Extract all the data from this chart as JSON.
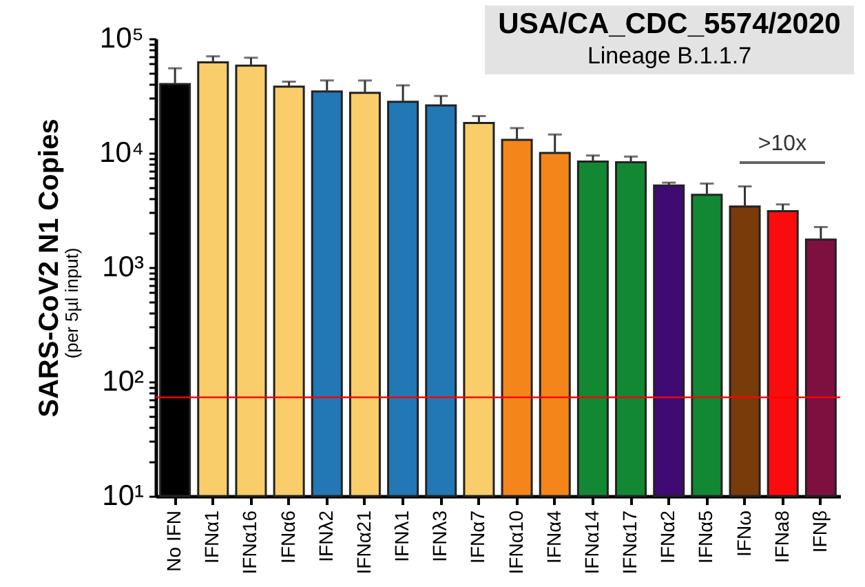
{
  "chart_data": {
    "type": "bar",
    "title": "USA/CA_CDC_5574/2020",
    "subtitle": "Lineage B.1.1.7",
    "ylabel": "SARS-CoV2 N1 Copies",
    "annotations": [
      "(per 5µl input)",
      ">10x"
    ],
    "categories": [
      "No IFN",
      "IFNα1",
      "IFNα16",
      "IFNα6",
      "IFNλ2",
      "IFNα21",
      "IFNλ1",
      "IFNλ3",
      "IFNα7",
      "IFNα10",
      "IFNα4",
      "IFNα14",
      "IFNα17",
      "IFNα2",
      "IFNα5",
      "IFNω",
      "IFNa8",
      "IFNβ"
    ],
    "values": [
      40000,
      62000,
      58000,
      38000,
      34500,
      33500,
      28000,
      26000,
      18300,
      13000,
      10000,
      8400,
      8300,
      5200,
      4300,
      3400,
      3100,
      1750
    ],
    "errors": [
      [
        40000,
        55000
      ],
      [
        62000,
        70000
      ],
      [
        58000,
        68000
      ],
      [
        38000,
        42000
      ],
      [
        34500,
        43000
      ],
      [
        33500,
        43000
      ],
      [
        28000,
        39000
      ],
      [
        26000,
        31500
      ],
      [
        18300,
        21000
      ],
      [
        13000,
        16500
      ],
      [
        10000,
        14500
      ],
      [
        8400,
        9500
      ],
      [
        8300,
        9300
      ],
      [
        5200,
        5500
      ],
      [
        4300,
        5400
      ],
      [
        3400,
        5100
      ],
      [
        3100,
        3550
      ],
      [
        1750,
        2250
      ]
    ],
    "colors": [
      "#000000",
      "#f8cd6a",
      "#f8cd6a",
      "#f8cd6a",
      "#2178b5",
      "#f8cd6a",
      "#2178b5",
      "#2178b5",
      "#f8cd6a",
      "#f4851a",
      "#f4851a",
      "#138833",
      "#138833",
      "#3f0a74",
      "#138833",
      "#7a3b0a",
      "#fb0c0c",
      "#7e1040"
    ],
    "log": "y",
    "ylim": [
      10,
      100000
    ],
    "yticks": [
      {
        "value": 10,
        "label": "10¹"
      },
      {
        "value": 20,
        "label": null
      },
      {
        "value": 30,
        "label": null
      },
      {
        "value": 40,
        "label": null
      },
      {
        "value": 50,
        "label": null
      },
      {
        "value": 60,
        "label": null
      },
      {
        "value": 70,
        "label": null
      },
      {
        "value": 80,
        "label": null
      },
      {
        "value": 90,
        "label": null
      },
      {
        "value": 100,
        "label": "10²"
      },
      {
        "value": 200,
        "label": null
      },
      {
        "value": 300,
        "label": null
      },
      {
        "value": 400,
        "label": null
      },
      {
        "value": 500,
        "label": null
      },
      {
        "value": 600,
        "label": null
      },
      {
        "value": 700,
        "label": null
      },
      {
        "value": 800,
        "label": null
      },
      {
        "value": 900,
        "label": null
      },
      {
        "value": 1000,
        "label": "10³"
      },
      {
        "value": 2000,
        "label": null
      },
      {
        "value": 3000,
        "label": null
      },
      {
        "value": 4000,
        "label": null
      },
      {
        "value": 5000,
        "label": null
      },
      {
        "value": 6000,
        "label": null
      },
      {
        "value": 7000,
        "label": null
      },
      {
        "value": 8000,
        "label": null
      },
      {
        "value": 9000,
        "label": null
      },
      {
        "value": 10000,
        "label": "10⁴"
      },
      {
        "value": 20000,
        "label": null
      },
      {
        "value": 30000,
        "label": null
      },
      {
        "value": 40000,
        "label": null
      },
      {
        "value": 50000,
        "label": null
      },
      {
        "value": 60000,
        "label": null
      },
      {
        "value": 70000,
        "label": null
      },
      {
        "value": 80000,
        "label": null
      },
      {
        "value": 90000,
        "label": null
      },
      {
        "value": 100000,
        "label": "10⁵"
      }
    ],
    "ref_lines": [
      {
        "axis": "y",
        "value": 73,
        "color": "#ff0000"
      }
    ],
    "grid": false
  }
}
